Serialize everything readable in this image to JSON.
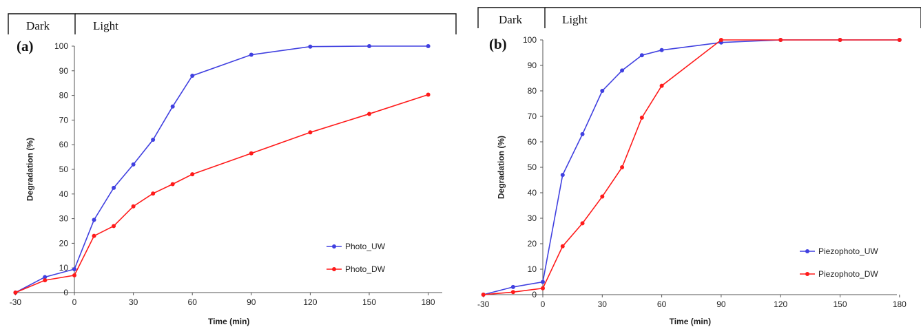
{
  "chart_data": [
    {
      "panel_label": "(a)",
      "type": "line",
      "phase_labels": {
        "dark": "Dark",
        "light": "Light"
      },
      "xlabel": "Time (min)",
      "ylabel": "Degradation (%)",
      "xlim": [
        -30,
        180
      ],
      "ylim": [
        0,
        100
      ],
      "xticks": [
        -30,
        0,
        30,
        60,
        90,
        120,
        150,
        180
      ],
      "yticks": [
        0,
        10,
        20,
        30,
        40,
        50,
        60,
        70,
        80,
        90,
        100
      ],
      "legend_position": "bottom-right",
      "grid": false,
      "series": [
        {
          "name": "Photo_UW",
          "color": "#4040e0",
          "x": [
            -30,
            -15,
            0,
            10,
            20,
            30,
            40,
            50,
            60,
            90,
            120,
            150,
            180
          ],
          "y": [
            0,
            6.3,
            9.5,
            29.5,
            42.5,
            52,
            62,
            75.5,
            88,
            96.5,
            99.8,
            100,
            100
          ]
        },
        {
          "name": "Photo_DW",
          "color": "#ff1a1a",
          "x": [
            -30,
            -15,
            0,
            10,
            20,
            30,
            40,
            50,
            60,
            90,
            120,
            150,
            180
          ],
          "y": [
            0,
            5,
            7,
            23,
            27,
            35,
            40.2,
            44,
            48,
            56.5,
            65,
            72.5,
            80.3
          ]
        }
      ]
    },
    {
      "panel_label": "(b)",
      "type": "line",
      "phase_labels": {
        "dark": "Dark",
        "light": "Light"
      },
      "xlabel": "Time (min)",
      "ylabel": "Degradation (%)",
      "xlim": [
        -30,
        180
      ],
      "ylim": [
        0,
        100
      ],
      "xticks": [
        -30,
        0,
        30,
        60,
        90,
        120,
        150,
        180
      ],
      "yticks": [
        0,
        10,
        20,
        30,
        40,
        50,
        60,
        70,
        80,
        90,
        100
      ],
      "legend_position": "bottom-right",
      "grid": false,
      "series": [
        {
          "name": "Piezophoto_UW",
          "color": "#4040e0",
          "x": [
            -30,
            -15,
            0,
            10,
            20,
            30,
            40,
            50,
            60,
            90,
            120,
            150,
            180
          ],
          "y": [
            0,
            3,
            5,
            47,
            63,
            80,
            88,
            94,
            96,
            99,
            100,
            100,
            100
          ]
        },
        {
          "name": "Piezophoto_DW",
          "color": "#ff1a1a",
          "x": [
            -30,
            -15,
            0,
            10,
            20,
            30,
            40,
            50,
            60,
            90,
            120,
            150,
            180
          ],
          "y": [
            0,
            1,
            2.5,
            19,
            28,
            38.5,
            50,
            69.5,
            82,
            100,
            100,
            100,
            100
          ]
        }
      ]
    }
  ]
}
